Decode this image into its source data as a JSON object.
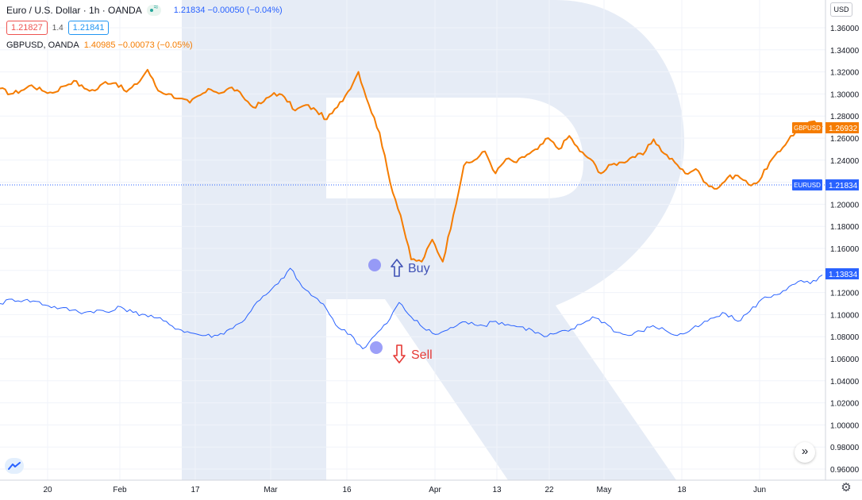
{
  "legend": {
    "symbol_title": "Euro / U.S. Dollar · 1h · OANDA",
    "main_value": "1.21834 −0.00050 (−0.04%)",
    "bid": "1.21827",
    "spread": "1.4",
    "ask": "1.21841",
    "compare_name": "GBPUSD, OANDA",
    "compare_value": "1.40985 −0.00073 (−0.05%)"
  },
  "currency_button": "USD",
  "scroll_icon": ">>",
  "gear_icon": "gear-icon",
  "annotations": {
    "buy": "Buy",
    "sell": "Sell"
  },
  "colors": {
    "eurusd": "#2962ff",
    "gbpusd": "#f57c00",
    "watermark": "#e6ecf6",
    "buy_arrow": "#3f51b5",
    "sell_arrow": "#e53935",
    "marker": "#7b7ff5"
  },
  "chart_data": {
    "type": "line",
    "x_tick_labels": [
      "20",
      "Feb",
      "17",
      "Mar",
      "16",
      "Apr",
      "13",
      "22",
      "May",
      "18",
      "Jun"
    ],
    "y_tick_labels": [
      "1.36000",
      "1.34000",
      "1.32000",
      "1.30000",
      "1.28000",
      "1.26000",
      "1.24000",
      "1.22000",
      "1.20000",
      "1.18000",
      "1.16000",
      "1.14000",
      "1.12000",
      "1.10000",
      "1.08000",
      "1.06000",
      "1.04000",
      "1.02000",
      "1.00000",
      "0.98000",
      "0.96000"
    ],
    "ylim": [
      0.95,
      1.37
    ],
    "price_labels": [
      {
        "name": "GBPUSD",
        "value": "1.26932",
        "color": "#f57c00"
      },
      {
        "name": "EURUSD",
        "value": "1.21834",
        "color": "#2962ff"
      },
      {
        "name": "",
        "value": "1.13834",
        "color": "#2962ff"
      }
    ],
    "series": [
      {
        "name": "GBPUSD",
        "color": "#f57c00",
        "values": [
          1.305,
          1.3,
          1.303,
          1.308,
          1.303,
          1.301,
          1.307,
          1.312,
          1.305,
          1.303,
          1.311,
          1.31,
          1.302,
          1.309,
          1.322,
          1.303,
          1.3,
          1.296,
          1.292,
          1.299,
          1.304,
          1.301,
          1.306,
          1.298,
          1.288,
          1.293,
          1.301,
          1.297,
          1.285,
          1.29,
          1.285,
          1.277,
          1.288,
          1.302,
          1.32,
          1.29,
          1.265,
          1.22,
          1.19,
          1.15,
          1.148,
          1.168,
          1.148,
          1.19,
          1.235,
          1.24,
          1.248,
          1.228,
          1.241,
          1.238,
          1.245,
          1.25,
          1.26,
          1.25,
          1.262,
          1.248,
          1.241,
          1.228,
          1.236,
          1.238,
          1.243,
          1.245,
          1.259,
          1.246,
          1.238,
          1.228,
          1.232,
          1.219,
          1.214,
          1.224,
          1.226,
          1.218,
          1.221,
          1.238,
          1.248,
          1.262,
          1.268,
          1.275,
          1.27
        ]
      },
      {
        "name": "EURUSD",
        "color": "#2962ff",
        "values": [
          1.11,
          1.114,
          1.113,
          1.112,
          1.108,
          1.106,
          1.104,
          1.102,
          1.104,
          1.102,
          1.107,
          1.102,
          1.1,
          1.097,
          1.091,
          1.086,
          1.083,
          1.081,
          1.081,
          1.087,
          1.093,
          1.108,
          1.118,
          1.128,
          1.142,
          1.125,
          1.116,
          1.105,
          1.088,
          1.082,
          1.069,
          1.081,
          1.092,
          1.111,
          1.098,
          1.088,
          1.082,
          1.086,
          1.092,
          1.093,
          1.09,
          1.094,
          1.091,
          1.089,
          1.086,
          1.08,
          1.083,
          1.085,
          1.091,
          1.098,
          1.093,
          1.084,
          1.081,
          1.085,
          1.09,
          1.086,
          1.081,
          1.085,
          1.091,
          1.097,
          1.101,
          1.094,
          1.103,
          1.114,
          1.118,
          1.122,
          1.13,
          1.128,
          1.136
        ]
      }
    ],
    "grid": true,
    "axis_position": "right"
  }
}
